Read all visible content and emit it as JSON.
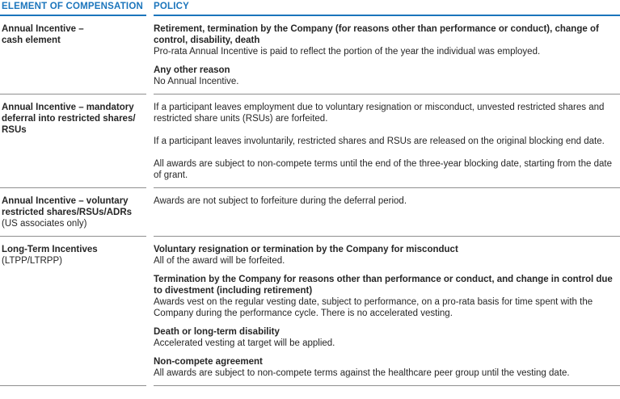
{
  "colors": {
    "accent_blue": "#1B75BC",
    "body_text": "#262626",
    "divider_gray": "#8F8F8F"
  },
  "table": {
    "headers": {
      "element": "ELEMENT OF COMPENSATION",
      "policy": "POLICY"
    },
    "rows": [
      {
        "element": {
          "bold_lines": [
            "Annual Incentive –",
            "cash element"
          ],
          "normal_lines": []
        },
        "policy_blocks": [
          {
            "heading": "Retirement, termination by the Company (for reasons other than performance or conduct), change of control, disability, death",
            "body": "Pro-rata Annual Incentive is paid to reflect the portion of the year the individual was employed."
          },
          {
            "heading": "Any other reason",
            "body": "No Annual Incentive."
          }
        ]
      },
      {
        "element": {
          "bold_lines": [
            "Annual Incentive – mandatory",
            "deferral into restricted shares/",
            "RSUs"
          ],
          "normal_lines": []
        },
        "policy_blocks": [
          {
            "body": "If a participant leaves employment due to voluntary resignation or misconduct, unvested restricted shares and restricted share units (RSUs) are forfeited."
          },
          {
            "body": "If a participant leaves involuntarily, restricted shares and RSUs are released on the original blocking end date."
          },
          {
            "body": "All awards are subject to non-compete terms until the end of the three-year blocking date, starting from the date of grant."
          }
        ]
      },
      {
        "element": {
          "bold_lines": [
            "Annual Incentive – voluntary",
            "restricted shares/RSUs/ADRs"
          ],
          "normal_lines": [
            "(US associates only)"
          ]
        },
        "policy_blocks": [
          {
            "body": "Awards are not subject to forfeiture during the deferral period."
          }
        ]
      },
      {
        "element": {
          "bold_lines": [
            "Long-Term Incentives"
          ],
          "normal_lines": [
            "(LTPP/LTRPP)"
          ]
        },
        "policy_blocks": [
          {
            "heading": "Voluntary resignation or termination by the Company for misconduct",
            "body": "All of the award will be forfeited."
          },
          {
            "heading": "Termination by the Company for reasons other than performance or conduct, and change in control due to divestment (including retirement)",
            "body": "Awards vest on the regular vesting date, subject to performance, on a pro-rata basis for time spent with the Company during the performance cycle. There is no accelerated vesting."
          },
          {
            "heading": "Death or long-term disability",
            "body": "Accelerated vesting at target will be applied."
          },
          {
            "heading": "Non-compete agreement",
            "body": "All awards are subject to non-compete terms against the healthcare peer group until the vesting date."
          }
        ]
      }
    ]
  }
}
